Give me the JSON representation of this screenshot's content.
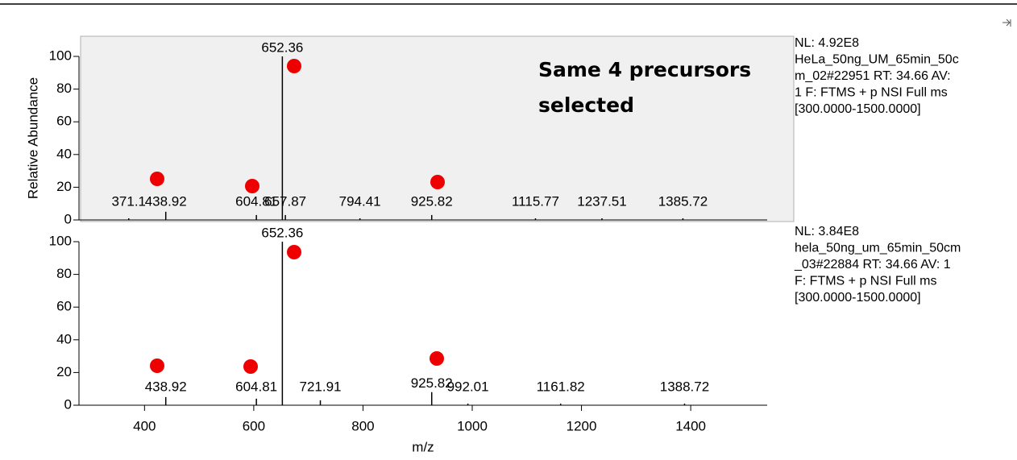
{
  "chart_data": [
    {
      "type": "stick",
      "ylabel": "Relative Abundance",
      "annotation": [
        "Same 4 precursors",
        "selected"
      ],
      "info": [
        "NL: 4.92E8",
        "HeLa_50ng_UM_65min_50c",
        "m_02#22951  RT: 34.66  AV:",
        "1 F: FTMS + p NSI Full ms",
        "[300.0000-1500.0000]"
      ],
      "x": [
        371.1,
        438.92,
        604.81,
        652.36,
        657.87,
        794.41,
        925.82,
        1115.77,
        1237.51,
        1385.72
      ],
      "values": [
        1,
        5,
        3,
        100,
        3,
        1,
        3,
        1,
        1,
        1
      ],
      "color": "#000000",
      "xlim": [
        280,
        1540
      ],
      "ylim": [
        0,
        100
      ],
      "yticks": [
        0,
        20,
        40,
        60,
        80,
        100
      ]
    },
    {
      "type": "stick",
      "xlabel": "m/z",
      "info": [
        "NL: 3.84E8",
        "hela_50ng_um_65min_50cm",
        "_03#22884  RT: 34.66  AV: 1",
        "F: FTMS + p NSI Full ms",
        "[300.0000-1500.0000]"
      ],
      "x": [
        438.92,
        604.81,
        652.36,
        721.91,
        925.82,
        992.01,
        1161.82,
        1388.72
      ],
      "values": [
        5,
        4,
        100,
        3,
        8,
        1,
        1,
        1
      ],
      "color": "#000000",
      "xlim": [
        280,
        1540
      ],
      "ylim": [
        0,
        100
      ],
      "yticks": [
        0,
        20,
        40,
        60,
        80,
        100
      ],
      "xticks": [
        400,
        600,
        800,
        1000,
        1200,
        1400
      ]
    }
  ]
}
